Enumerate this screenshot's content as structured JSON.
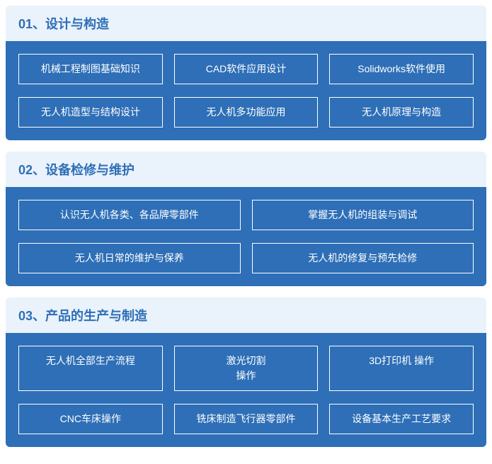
{
  "colors": {
    "header_bg": "#eaf2fb",
    "header_text": "#2e6fb7",
    "body_bg": "#2e6fb7",
    "chip_border": "#ffffff",
    "chip_text": "#ffffff"
  },
  "sections": [
    {
      "title": "01、设计与构造",
      "layout": "cols-3",
      "items": [
        "机械工程制图基础知识",
        "CAD软件应用设计",
        "Solidworks软件使用",
        "无人机造型与结构设计",
        "无人机多功能应用",
        "无人机原理与构造"
      ]
    },
    {
      "title": "02、设备检修与维护",
      "layout": "cols-2",
      "items": [
        "认识无人机各类、各品牌零部件",
        "掌握无人机的组装与调试",
        "无人机日常的维护与保养",
        "无人机的修复与预先检修"
      ]
    },
    {
      "title": "03、产品的生产与制造",
      "layout": "cols-3",
      "items": [
        "无人机全部生产流程",
        "激光切割\n操作",
        "3D打印机 操作",
        "CNC车床操作",
        "铣床制造飞行器零部件",
        "设备基本生产工艺要求"
      ]
    }
  ]
}
